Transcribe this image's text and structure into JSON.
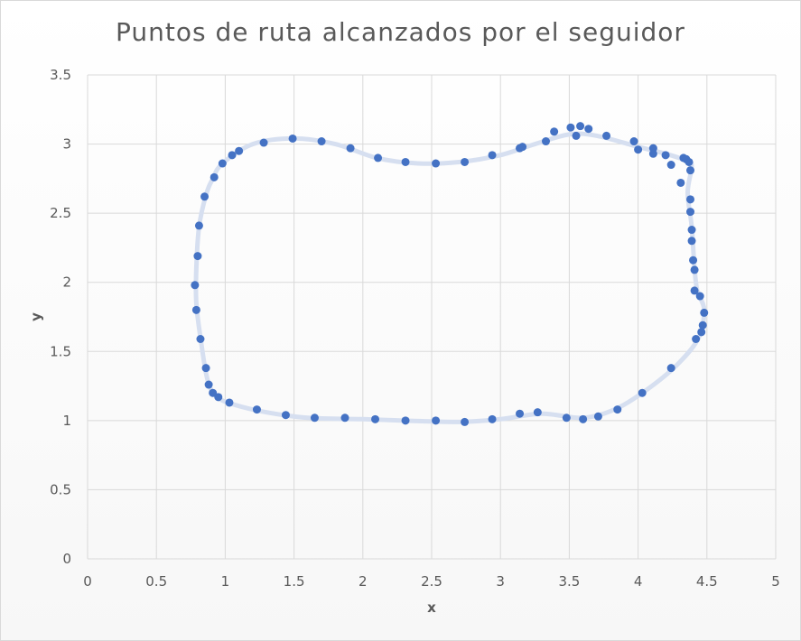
{
  "chart_data": {
    "type": "scatter",
    "title": "Puntos de ruta alcanzados por el seguidor",
    "xlabel": "x",
    "ylabel": "y",
    "xlim": [
      0,
      5
    ],
    "ylim": [
      0,
      3.5
    ],
    "x_ticks": [
      "0",
      "0.5",
      "1",
      "1.5",
      "2",
      "2.5",
      "3",
      "3.5",
      "4",
      "4.5",
      "5"
    ],
    "y_ticks": [
      "0",
      "0.5",
      "1",
      "1.5",
      "2",
      "2.5",
      "3",
      "3.5"
    ],
    "grid": true,
    "marker_color": "#4472c4",
    "path_color": "#d6dff0",
    "path": [
      [
        0.98,
        2.86
      ],
      [
        1.2,
        3.0
      ],
      [
        1.5,
        3.04
      ],
      [
        1.8,
        3.0
      ],
      [
        2.1,
        2.9
      ],
      [
        2.4,
        2.86
      ],
      [
        2.7,
        2.87
      ],
      [
        3.0,
        2.92
      ],
      [
        3.25,
        3.0
      ],
      [
        3.5,
        3.07
      ],
      [
        3.7,
        3.06
      ],
      [
        4.0,
        2.98
      ],
      [
        4.2,
        2.93
      ],
      [
        4.35,
        2.88
      ],
      [
        4.39,
        2.84
      ],
      [
        4.36,
        2.65
      ],
      [
        4.39,
        2.4
      ],
      [
        4.41,
        2.1
      ],
      [
        4.43,
        1.94
      ],
      [
        4.48,
        1.8
      ],
      [
        4.44,
        1.6
      ],
      [
        4.3,
        1.42
      ],
      [
        4.1,
        1.25
      ],
      [
        3.85,
        1.09
      ],
      [
        3.6,
        1.02
      ],
      [
        3.3,
        1.05
      ],
      [
        3.0,
        1.01
      ],
      [
        2.7,
        0.99
      ],
      [
        2.3,
        1.0
      ],
      [
        2.0,
        1.01
      ],
      [
        1.6,
        1.02
      ],
      [
        1.3,
        1.06
      ],
      [
        1.05,
        1.12
      ],
      [
        0.93,
        1.18
      ],
      [
        0.87,
        1.3
      ],
      [
        0.82,
        1.6
      ],
      [
        0.79,
        1.85
      ],
      [
        0.79,
        2.1
      ],
      [
        0.81,
        2.4
      ],
      [
        0.86,
        2.63
      ],
      [
        0.91,
        2.75
      ],
      [
        0.98,
        2.86
      ]
    ],
    "points": [
      [
        0.98,
        2.86
      ],
      [
        1.05,
        2.92
      ],
      [
        1.1,
        2.95
      ],
      [
        1.28,
        3.01
      ],
      [
        1.49,
        3.04
      ],
      [
        1.7,
        3.02
      ],
      [
        1.91,
        2.97
      ],
      [
        2.11,
        2.9
      ],
      [
        2.31,
        2.87
      ],
      [
        2.53,
        2.86
      ],
      [
        2.74,
        2.87
      ],
      [
        2.94,
        2.92
      ],
      [
        3.14,
        2.97
      ],
      [
        3.16,
        2.98
      ],
      [
        3.33,
        3.02
      ],
      [
        3.39,
        3.09
      ],
      [
        3.51,
        3.12
      ],
      [
        3.55,
        3.06
      ],
      [
        3.58,
        3.13
      ],
      [
        3.64,
        3.11
      ],
      [
        3.77,
        3.06
      ],
      [
        3.97,
        3.02
      ],
      [
        4.0,
        2.96
      ],
      [
        4.11,
        2.97
      ],
      [
        4.11,
        2.93
      ],
      [
        4.2,
        2.92
      ],
      [
        4.24,
        2.85
      ],
      [
        4.31,
        2.72
      ],
      [
        4.33,
        2.9
      ],
      [
        4.35,
        2.89
      ],
      [
        4.37,
        2.87
      ],
      [
        4.38,
        2.81
      ],
      [
        4.38,
        2.6
      ],
      [
        4.38,
        2.51
      ],
      [
        4.39,
        2.38
      ],
      [
        4.39,
        2.3
      ],
      [
        4.4,
        2.16
      ],
      [
        4.41,
        2.09
      ],
      [
        4.41,
        1.94
      ],
      [
        4.45,
        1.9
      ],
      [
        4.48,
        1.78
      ],
      [
        4.47,
        1.69
      ],
      [
        4.46,
        1.64
      ],
      [
        4.42,
        1.59
      ],
      [
        4.24,
        1.38
      ],
      [
        4.03,
        1.2
      ],
      [
        3.85,
        1.08
      ],
      [
        3.71,
        1.03
      ],
      [
        3.6,
        1.01
      ],
      [
        3.48,
        1.02
      ],
      [
        3.27,
        1.06
      ],
      [
        3.14,
        1.05
      ],
      [
        2.94,
        1.01
      ],
      [
        2.74,
        0.99
      ],
      [
        2.53,
        1.0
      ],
      [
        2.31,
        1.0
      ],
      [
        2.09,
        1.01
      ],
      [
        1.87,
        1.02
      ],
      [
        1.65,
        1.02
      ],
      [
        1.44,
        1.04
      ],
      [
        1.23,
        1.08
      ],
      [
        1.03,
        1.13
      ],
      [
        0.95,
        1.17
      ],
      [
        0.91,
        1.2
      ],
      [
        0.88,
        1.26
      ],
      [
        0.86,
        1.38
      ],
      [
        0.82,
        1.59
      ],
      [
        0.79,
        1.8
      ],
      [
        0.78,
        1.98
      ],
      [
        0.8,
        2.19
      ],
      [
        0.81,
        2.41
      ],
      [
        0.85,
        2.62
      ],
      [
        0.92,
        2.76
      ]
    ]
  }
}
